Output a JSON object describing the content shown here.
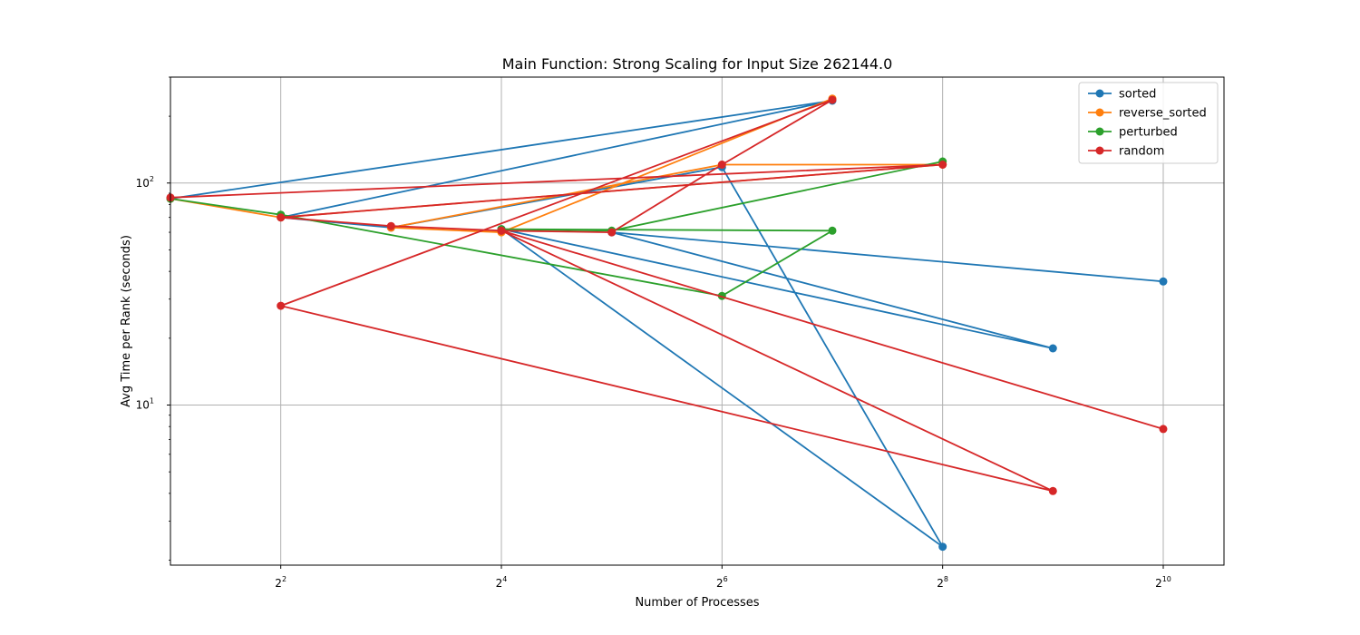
{
  "chart_data": {
    "type": "line",
    "title": "Main Function: Strong Scaling for Input Size 262144.0",
    "xlabel": "Number of Processes",
    "ylabel": "Avg Time per Rank (seconds)",
    "x_scale": "log2",
    "y_scale": "log10",
    "x_range": [
      2,
      1500
    ],
    "y_range": [
      1.9,
      300
    ],
    "x_ticks": [
      {
        "value": 4,
        "base": "2",
        "exp": "2"
      },
      {
        "value": 16,
        "base": "2",
        "exp": "4"
      },
      {
        "value": 64,
        "base": "2",
        "exp": "6"
      },
      {
        "value": 256,
        "base": "2",
        "exp": "8"
      },
      {
        "value": 1024,
        "base": "2",
        "exp": "10"
      }
    ],
    "y_ticks": [
      {
        "value": 10,
        "base": "10",
        "exp": "1"
      },
      {
        "value": 100,
        "base": "10",
        "exp": "2"
      }
    ],
    "grid": true,
    "legend_position": "top-right",
    "series": [
      {
        "name": "sorted",
        "color": "#1f77b4",
        "x": [
          2,
          128,
          4,
          8,
          64,
          256,
          16,
          512,
          32,
          1024
        ],
        "y": [
          85,
          235,
          70,
          63,
          118,
          2.3,
          62,
          18,
          60,
          36
        ]
      },
      {
        "name": "reverse_sorted",
        "color": "#ff7f0e",
        "x": [
          2,
          4,
          256,
          64,
          8,
          16,
          128
        ],
        "y": [
          85,
          70,
          121,
          121,
          63,
          60,
          240
        ]
      },
      {
        "name": "perturbed",
        "color": "#2ca02c",
        "x": [
          2,
          4,
          64,
          128,
          16,
          32,
          256
        ],
        "y": [
          85,
          72,
          31,
          61,
          62,
          61,
          125
        ]
      },
      {
        "name": "random",
        "color": "#d62728",
        "x": [
          2,
          256,
          4,
          8,
          16,
          32,
          64,
          128,
          4,
          512,
          16,
          1024
        ],
        "y": [
          86,
          121,
          70,
          64,
          61,
          60,
          121,
          237,
          28,
          4.1,
          61,
          7.8
        ]
      }
    ]
  }
}
